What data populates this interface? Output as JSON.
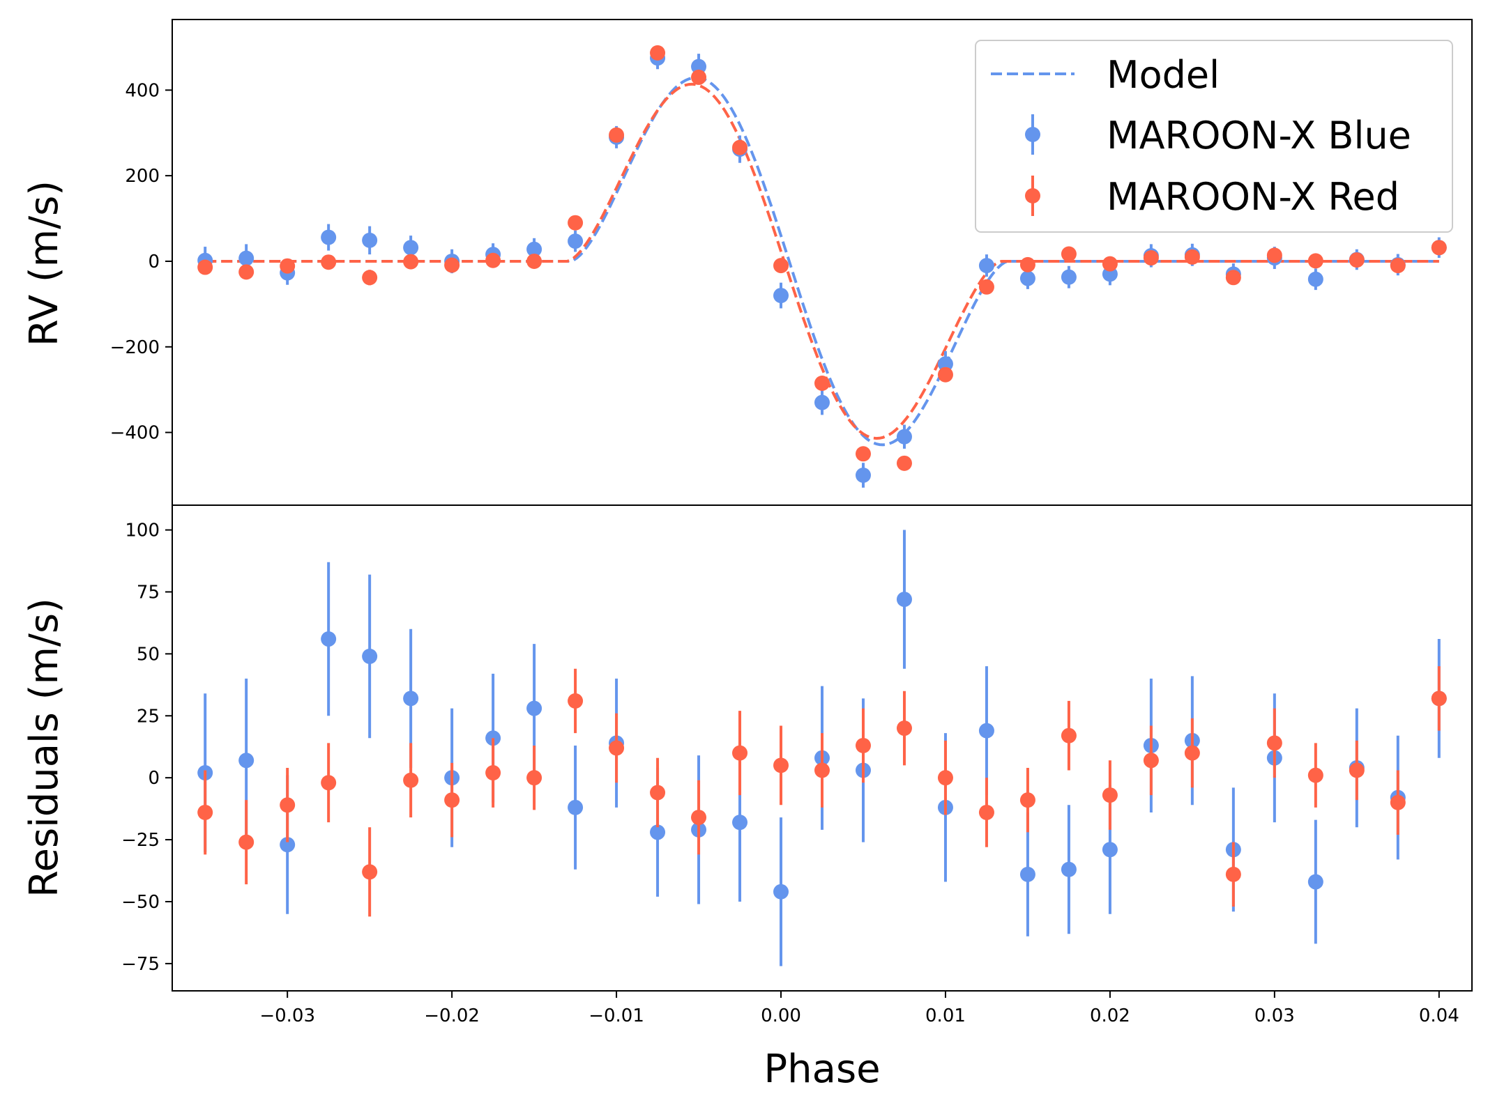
{
  "chart_data": [
    {
      "type": "scatter",
      "panel": "top",
      "xlabel": "",
      "ylabel": "RV (m/s)",
      "xlim": [
        -0.037,
        0.042
      ],
      "ylim": [
        -570,
        565
      ],
      "yticks": [
        400,
        200,
        0,
        -200,
        -400
      ],
      "ytick_labels": [
        "400",
        "200",
        "0",
        "−200",
        "−400"
      ],
      "legend": {
        "position": "top-right",
        "entries": [
          "Model",
          "MAROON-X Blue",
          "MAROON-X Red"
        ]
      },
      "model": {
        "name": "Model",
        "style": "dashed",
        "blue": {
          "amplitude": 510,
          "center": 0.0005,
          "half_width": 0.0133
        },
        "red": {
          "amplitude": 492,
          "center": 0.0002,
          "half_width": 0.0132
        }
      },
      "series": [
        {
          "name": "MAROON-X Blue",
          "color": "#6495ed",
          "x": [
            -0.035,
            -0.0325,
            -0.03,
            -0.0275,
            -0.025,
            -0.0225,
            -0.02,
            -0.0175,
            -0.015,
            -0.0125,
            -0.01,
            -0.0075,
            -0.005,
            -0.0025,
            0.0,
            0.0025,
            0.005,
            0.0075,
            0.01,
            0.0125,
            0.015,
            0.0175,
            0.02,
            0.0225,
            0.025,
            0.0275,
            0.03,
            0.0325,
            0.035,
            0.0375,
            0.04
          ],
          "y": [
            2,
            7,
            -27,
            56,
            49,
            32,
            0,
            16,
            28,
            47,
            290,
            475,
            455,
            262,
            -80,
            -330,
            -500,
            -410,
            -240,
            -10,
            -40,
            -37,
            -30,
            13,
            15,
            -30,
            8,
            -42,
            4,
            -8,
            32
          ],
          "yerr": [
            32,
            33,
            28,
            31,
            33,
            28,
            28,
            26,
            26,
            25,
            26,
            26,
            30,
            32,
            30,
            29,
            29,
            28,
            30,
            26,
            25,
            26,
            26,
            27,
            26,
            25,
            26,
            25,
            24,
            25,
            24
          ]
        },
        {
          "name": "MAROON-X Red",
          "color": "#ff6347",
          "x": [
            -0.035,
            -0.0325,
            -0.03,
            -0.0275,
            -0.025,
            -0.0225,
            -0.02,
            -0.0175,
            -0.015,
            -0.0125,
            -0.01,
            -0.0075,
            -0.005,
            -0.0025,
            0.0,
            0.0025,
            0.005,
            0.0075,
            0.01,
            0.0125,
            0.015,
            0.0175,
            0.02,
            0.0225,
            0.025,
            0.0275,
            0.03,
            0.0325,
            0.035,
            0.0375,
            0.04
          ],
          "y": [
            -14,
            -25,
            -11,
            -2,
            -38,
            -1,
            -9,
            2,
            0,
            90,
            295,
            487,
            430,
            266,
            -10,
            -285,
            -450,
            -472,
            -265,
            -60,
            -8,
            17,
            -6,
            8,
            10,
            -38,
            14,
            1,
            3,
            -10,
            32
          ],
          "yerr": [
            17,
            17,
            15,
            16,
            18,
            15,
            15,
            14,
            13,
            13,
            14,
            14,
            15,
            17,
            16,
            15,
            15,
            15,
            15,
            14,
            13,
            14,
            14,
            14,
            14,
            13,
            14,
            13,
            12,
            13,
            13
          ]
        }
      ]
    },
    {
      "type": "scatter",
      "panel": "bottom",
      "xlabel": "Phase",
      "ylabel": "Residuals (m/s)",
      "xlim": [
        -0.037,
        0.042
      ],
      "ylim": [
        -86,
        110
      ],
      "yticks": [
        100,
        75,
        50,
        25,
        0,
        -25,
        -50,
        -75
      ],
      "ytick_labels": [
        "100",
        "75",
        "50",
        "25",
        "0",
        "−25",
        "−50",
        "−75"
      ],
      "xticks": [
        -0.03,
        -0.02,
        -0.01,
        0.0,
        0.01,
        0.02,
        0.03,
        0.04
      ],
      "xtick_labels": [
        "−0.03",
        "−0.02",
        "−0.01",
        "0.00",
        "0.01",
        "0.02",
        "0.03",
        "0.04"
      ],
      "series": [
        {
          "name": "MAROON-X Blue",
          "color": "#6495ed",
          "x": [
            -0.035,
            -0.0325,
            -0.03,
            -0.0275,
            -0.025,
            -0.0225,
            -0.02,
            -0.0175,
            -0.015,
            -0.0125,
            -0.01,
            -0.0075,
            -0.005,
            -0.0025,
            0.0,
            0.0025,
            0.005,
            0.0075,
            0.01,
            0.0125,
            0.015,
            0.0175,
            0.02,
            0.0225,
            0.025,
            0.0275,
            0.03,
            0.0325,
            0.035,
            0.0375,
            0.04
          ],
          "y": [
            2,
            7,
            -27,
            56,
            49,
            32,
            0,
            16,
            28,
            -12,
            14,
            -22,
            -21,
            -18,
            -46,
            8,
            3,
            72,
            -12,
            19,
            -39,
            -37,
            -29,
            13,
            15,
            -29,
            8,
            -42,
            4,
            -8,
            32
          ],
          "yerr": [
            32,
            33,
            28,
            31,
            33,
            28,
            28,
            26,
            26,
            25,
            26,
            26,
            30,
            32,
            30,
            29,
            29,
            28,
            30,
            26,
            25,
            26,
            26,
            27,
            26,
            25,
            26,
            25,
            24,
            25,
            24
          ]
        },
        {
          "name": "MAROON-X Red",
          "color": "#ff6347",
          "x": [
            -0.035,
            -0.0325,
            -0.03,
            -0.0275,
            -0.025,
            -0.0225,
            -0.02,
            -0.0175,
            -0.015,
            -0.0125,
            -0.01,
            -0.0075,
            -0.005,
            -0.0025,
            0.0,
            0.0025,
            0.005,
            0.0075,
            0.01,
            0.0125,
            0.015,
            0.0175,
            0.02,
            0.0225,
            0.025,
            0.0275,
            0.03,
            0.0325,
            0.035,
            0.0375,
            0.04
          ],
          "y": [
            -14,
            -26,
            -11,
            -2,
            -38,
            -1,
            -9,
            2,
            0,
            31,
            12,
            -6,
            -16,
            10,
            5,
            3,
            13,
            20,
            0,
            -14,
            -9,
            17,
            -7,
            7,
            10,
            -39,
            14,
            1,
            3,
            -10,
            32
          ],
          "yerr": [
            17,
            17,
            15,
            16,
            18,
            15,
            15,
            14,
            13,
            13,
            14,
            14,
            15,
            17,
            16,
            15,
            15,
            15,
            15,
            14,
            13,
            14,
            14,
            14,
            14,
            13,
            14,
            13,
            12,
            13,
            13
          ]
        }
      ]
    }
  ]
}
